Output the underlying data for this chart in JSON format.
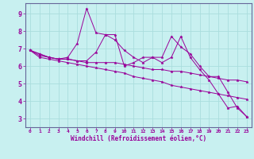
{
  "xlabel": "Windchill (Refroidissement éolien,°C)",
  "bg_color": "#c8f0f0",
  "line_color": "#990099",
  "grid_color": "#aadddd",
  "spine_color": "#666699",
  "x_ticks": [
    0,
    1,
    2,
    3,
    4,
    5,
    6,
    7,
    8,
    9,
    10,
    11,
    12,
    13,
    14,
    15,
    16,
    17,
    18,
    19,
    20,
    21,
    22,
    23
  ],
  "y_ticks": [
    3,
    4,
    5,
    6,
    7,
    8,
    9
  ],
  "ylim": [
    2.5,
    9.6
  ],
  "xlim": [
    -0.5,
    23.5
  ],
  "series": [
    [
      6.9,
      6.7,
      6.5,
      6.4,
      6.4,
      6.3,
      6.3,
      6.8,
      7.8,
      7.8,
      6.0,
      6.2,
      6.5,
      6.5,
      6.5,
      7.7,
      7.1,
      6.7,
      6.0,
      5.4,
      5.4,
      4.5,
      3.6,
      3.1
    ],
    [
      6.9,
      6.7,
      6.5,
      6.4,
      6.5,
      7.3,
      9.3,
      7.9,
      7.8,
      7.5,
      6.9,
      6.5,
      6.2,
      6.5,
      6.2,
      6.5,
      7.7,
      6.5,
      5.8,
      5.2,
      4.4,
      3.6,
      3.7,
      3.1
    ],
    [
      6.9,
      6.6,
      6.5,
      6.4,
      6.4,
      6.3,
      6.2,
      6.2,
      6.2,
      6.2,
      6.1,
      6.0,
      5.9,
      5.8,
      5.8,
      5.7,
      5.7,
      5.6,
      5.5,
      5.4,
      5.3,
      5.2,
      5.2,
      5.1
    ],
    [
      6.9,
      6.5,
      6.4,
      6.3,
      6.2,
      6.1,
      6.0,
      5.9,
      5.8,
      5.7,
      5.6,
      5.4,
      5.3,
      5.2,
      5.1,
      4.9,
      4.8,
      4.7,
      4.6,
      4.5,
      4.4,
      4.3,
      4.2,
      4.1
    ]
  ]
}
